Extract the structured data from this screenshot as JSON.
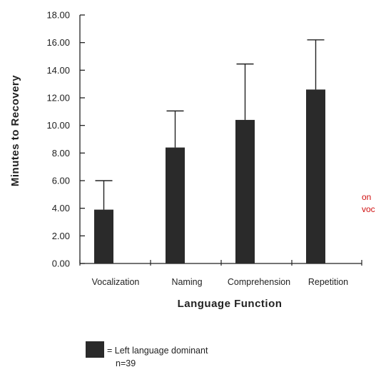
{
  "chart_data": {
    "type": "bar",
    "categories": [
      "Vocalization",
      "Naming",
      "Comprehension",
      "Repetition"
    ],
    "series": [
      {
        "values": [
          3.9,
          8.4,
          10.4,
          12.6
        ],
        "error_upper": [
          6.0,
          11.05,
          14.45,
          16.2
        ],
        "color": "#2a2a2a"
      }
    ],
    "ylabel": "Minutes to Recovery",
    "xlabel": "Language Function",
    "ylim": [
      0,
      18
    ],
    "yticks": [
      "0.00",
      "2.00",
      "4.00",
      "6.00",
      "8.00",
      "10.00",
      "12.00",
      "14.00",
      "16.00",
      "18.00"
    ],
    "legend": {
      "label": "= Left language dominant",
      "sublabel": "n=39",
      "placement": "bottom-left"
    },
    "annotation": [
      "on",
      "voc"
    ],
    "grid": false
  }
}
